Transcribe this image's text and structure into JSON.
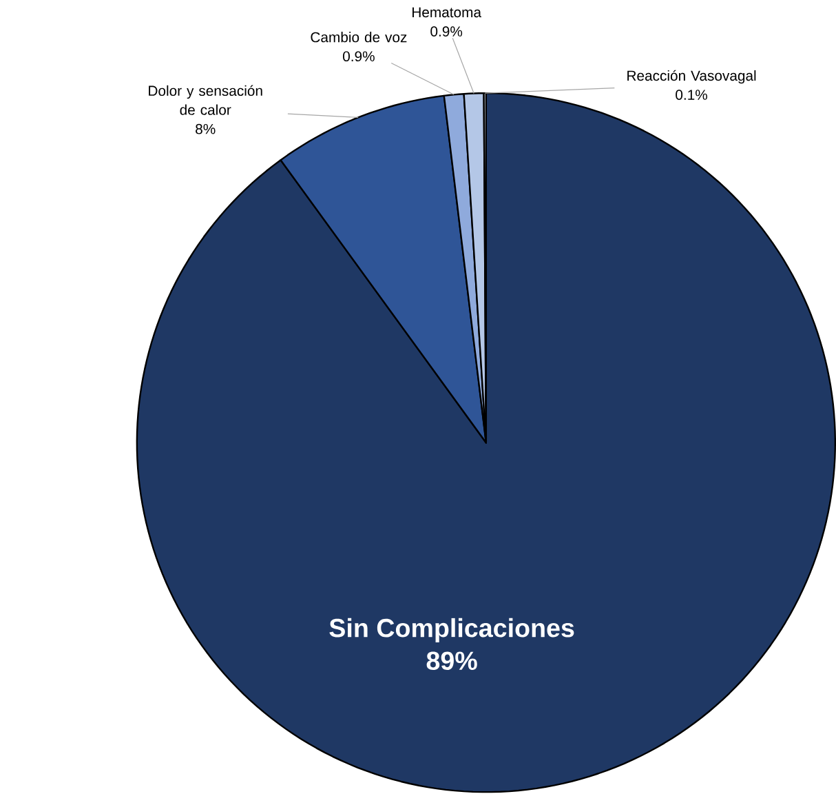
{
  "chart_data": {
    "type": "pie",
    "categories": [
      "Sin Complicaciones",
      "Dolor y sensación de calor",
      "Cambio de voz",
      "Hematoma",
      "Reacción Vasovagal"
    ],
    "values": [
      89,
      8,
      0.9,
      0.9,
      0.1
    ],
    "value_labels": [
      "89%",
      "8%",
      "0.9%",
      "0.9%",
      "0.1%"
    ],
    "colors": [
      "#1f3864",
      "#2f5597",
      "#8faadc",
      "#b4c7e7",
      "#dae3f3"
    ]
  }
}
